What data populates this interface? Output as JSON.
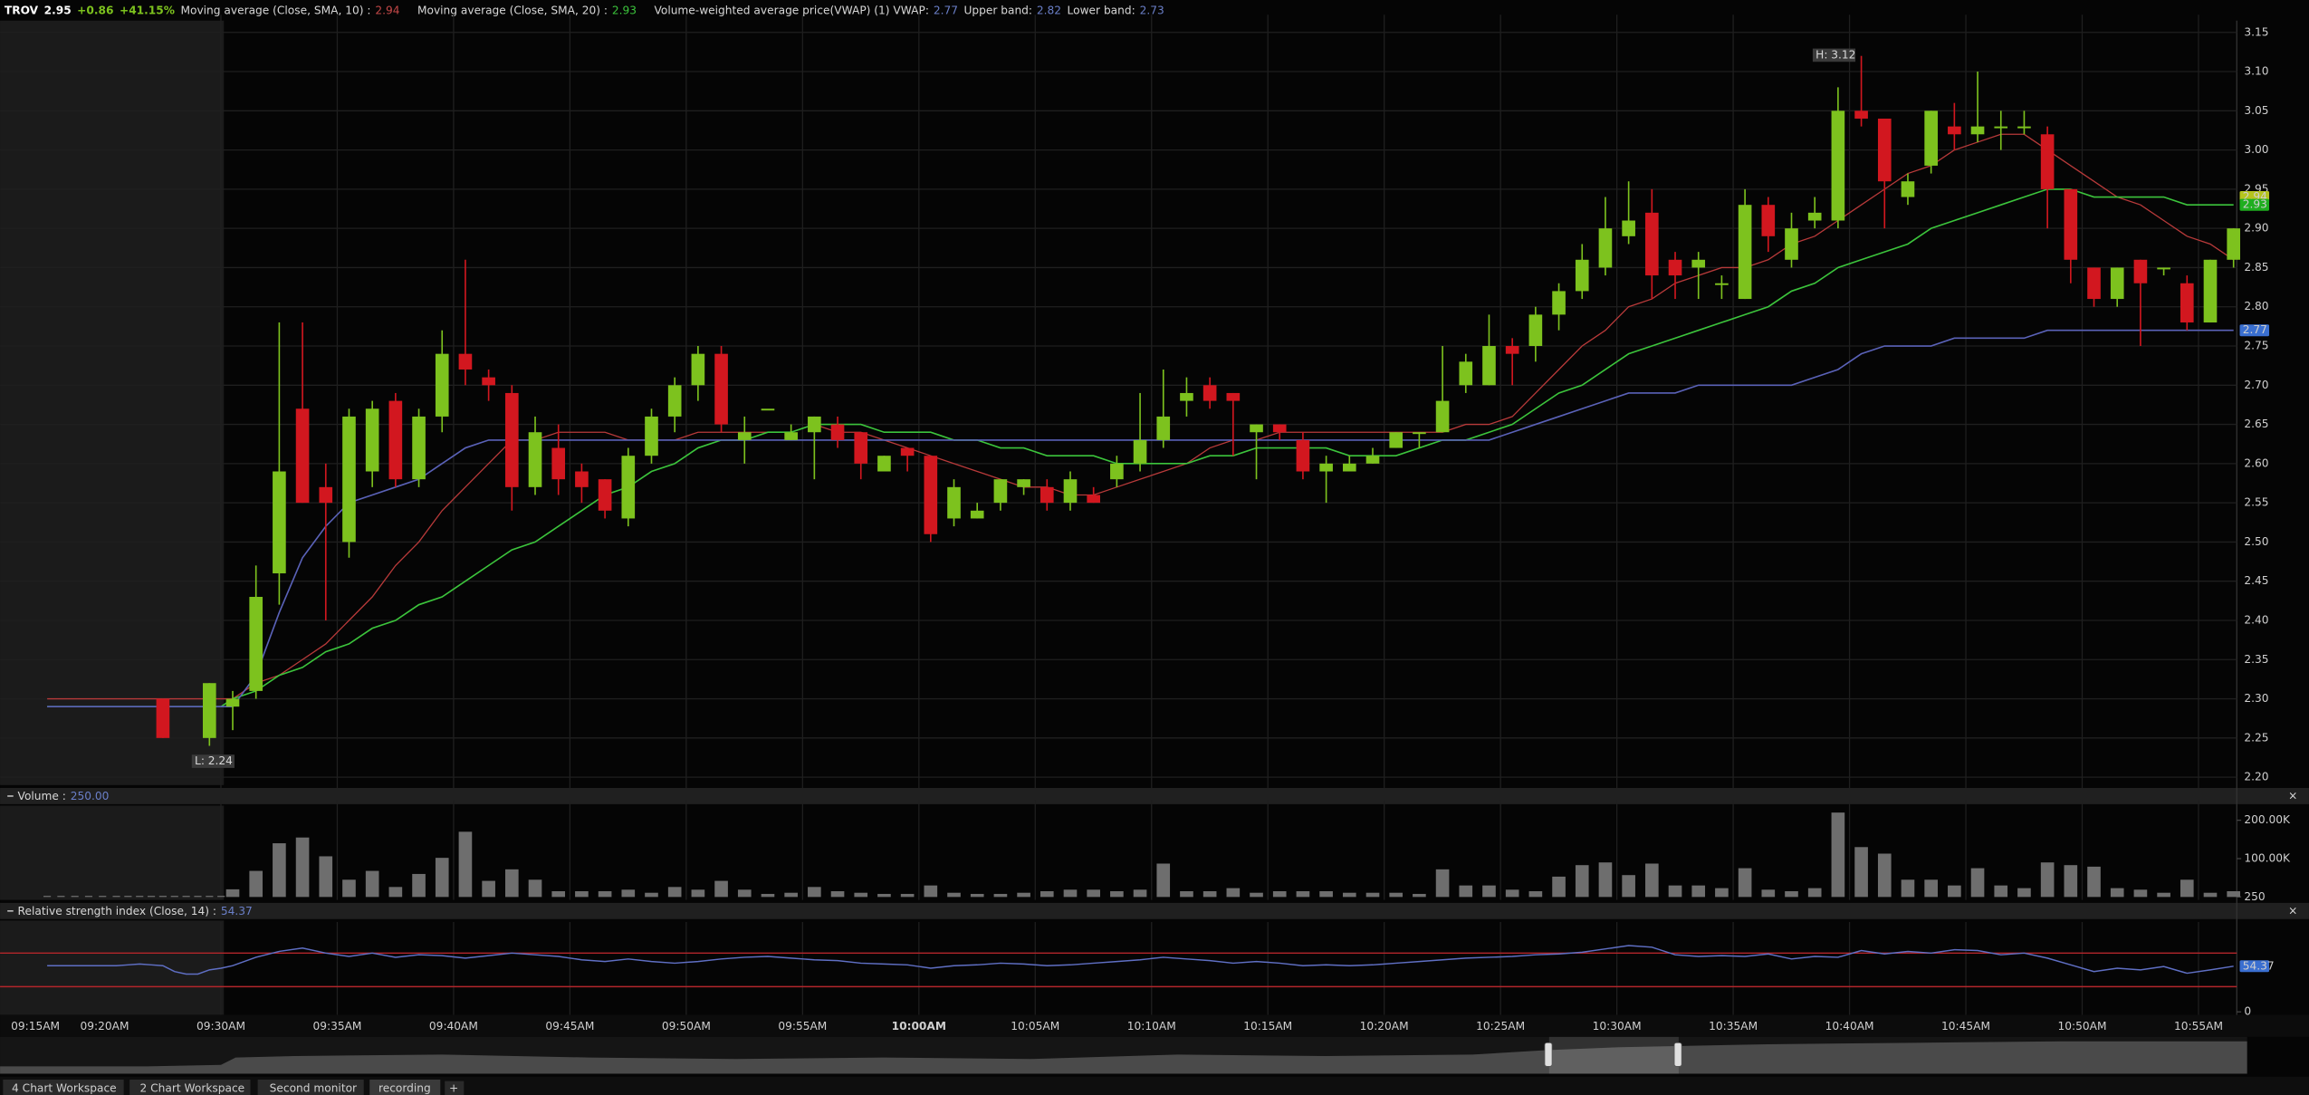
{
  "header": {
    "symbol": "TROV",
    "price": 2.95,
    "change": "+0.86",
    "change_pct": "+41.15%"
  },
  "tabs": [
    "4 Chart Workspace",
    "2 Chart Workspace",
    "Second monitor",
    "recording",
    "+"
  ],
  "chart_data": [
    {
      "type": "candlestick",
      "categories": [
        "09:15AM",
        null,
        null,
        null,
        null,
        "09:20AM",
        null,
        null,
        null,
        null,
        null,
        null,
        null,
        null,
        null,
        "09:30AM",
        null,
        null,
        null,
        null,
        "09:35AM",
        null,
        null,
        null,
        null,
        "09:40AM",
        null,
        null,
        null,
        null,
        "09:45AM",
        null,
        null,
        null,
        null,
        "09:50AM",
        null,
        null,
        null,
        null,
        "09:55AM",
        null,
        null,
        null,
        null,
        "10:00AM",
        null,
        null,
        null,
        null,
        "10:05AM",
        null,
        null,
        null,
        null,
        "10:10AM",
        null,
        null,
        null,
        null,
        "10:15AM",
        null,
        null,
        null,
        null,
        "10:20AM",
        null,
        null,
        null,
        null,
        "10:25AM",
        null,
        null,
        null,
        null,
        "10:30AM",
        null,
        null,
        null,
        null,
        "10:35AM",
        null,
        null,
        null,
        null,
        "10:40AM",
        null,
        null,
        null,
        null,
        "10:45AM",
        null,
        null,
        null,
        null,
        "10:50AM",
        null,
        null,
        null,
        null,
        "10:55AM",
        null
      ],
      "open": [
        null,
        null,
        null,
        null,
        null,
        null,
        null,
        null,
        null,
        2.3,
        null,
        null,
        null,
        2.25,
        null,
        2.29,
        2.31,
        2.46,
        2.67,
        2.57,
        2.5,
        2.59,
        2.68,
        2.58,
        2.66,
        2.74,
        2.71,
        2.69,
        2.57,
        2.62,
        2.59,
        2.58,
        2.53,
        2.61,
        2.66,
        2.7,
        2.74,
        2.63,
        2.67,
        2.63,
        2.64,
        2.65,
        2.64,
        2.59,
        2.62,
        2.61,
        2.53,
        2.53,
        2.55,
        2.57,
        2.57,
        2.55,
        2.56,
        2.58,
        2.6,
        2.63,
        2.68,
        2.7,
        2.69,
        2.64,
        2.65,
        2.63,
        2.59,
        2.59,
        2.6,
        2.62,
        2.64,
        2.64,
        2.7,
        2.7,
        2.75,
        2.75,
        2.79,
        2.82,
        2.85,
        2.89,
        2.92,
        2.86,
        2.85,
        2.83,
        2.81,
        2.93,
        2.86,
        2.91,
        2.91,
        3.05,
        3.04,
        2.94,
        2.98,
        3.03,
        3.02,
        3.03,
        3.03,
        3.02,
        2.95,
        2.85,
        2.81,
        2.86,
        2.85,
        2.83,
        2.78,
        2.86
      ],
      "high": [
        null,
        null,
        null,
        null,
        null,
        null,
        null,
        null,
        null,
        2.3,
        null,
        null,
        null,
        2.32,
        null,
        2.31,
        2.47,
        2.78,
        2.78,
        2.6,
        2.67,
        2.68,
        2.69,
        2.67,
        2.77,
        2.86,
        2.72,
        2.7,
        2.66,
        2.65,
        2.6,
        2.58,
        2.62,
        2.67,
        2.71,
        2.75,
        2.75,
        2.66,
        2.67,
        2.65,
        2.66,
        2.66,
        2.64,
        2.61,
        2.62,
        2.61,
        2.58,
        2.55,
        2.58,
        2.58,
        2.58,
        2.59,
        2.57,
        2.61,
        2.69,
        2.72,
        2.71,
        2.71,
        2.69,
        2.65,
        2.65,
        2.64,
        2.61,
        2.61,
        2.62,
        2.64,
        2.64,
        2.75,
        2.74,
        2.79,
        2.76,
        2.8,
        2.83,
        2.88,
        2.94,
        2.96,
        2.95,
        2.87,
        2.87,
        2.84,
        2.95,
        2.94,
        2.92,
        2.94,
        3.08,
        3.12,
        3.04,
        2.97,
        3.05,
        3.06,
        3.1,
        3.05,
        3.05,
        3.03,
        2.95,
        2.85,
        2.85,
        2.86,
        2.85,
        2.84,
        2.86,
        2.9
      ],
      "low": [
        null,
        null,
        null,
        null,
        null,
        null,
        null,
        null,
        null,
        2.25,
        null,
        null,
        null,
        2.24,
        null,
        2.26,
        2.3,
        2.42,
        2.55,
        2.4,
        2.48,
        2.57,
        2.57,
        2.57,
        2.64,
        2.7,
        2.68,
        2.54,
        2.56,
        2.56,
        2.55,
        2.53,
        2.52,
        2.6,
        2.64,
        2.68,
        2.64,
        2.6,
        2.67,
        2.63,
        2.58,
        2.62,
        2.58,
        2.59,
        2.59,
        2.5,
        2.52,
        2.53,
        2.54,
        2.56,
        2.54,
        2.54,
        2.55,
        2.57,
        2.59,
        2.62,
        2.66,
        2.67,
        2.61,
        2.58,
        2.63,
        2.58,
        2.55,
        2.59,
        2.6,
        2.62,
        2.62,
        2.64,
        2.69,
        2.7,
        2.7,
        2.73,
        2.77,
        2.81,
        2.84,
        2.88,
        2.81,
        2.81,
        2.81,
        2.81,
        2.81,
        2.87,
        2.85,
        2.9,
        2.9,
        3.03,
        2.9,
        2.93,
        2.97,
        3.0,
        3.01,
        3.0,
        3.02,
        2.9,
        2.83,
        2.8,
        2.8,
        2.75,
        2.84,
        2.77,
        2.78,
        2.85
      ],
      "close": [
        null,
        null,
        null,
        null,
        null,
        null,
        null,
        null,
        null,
        2.25,
        null,
        null,
        null,
        2.32,
        null,
        2.3,
        2.43,
        2.59,
        2.55,
        2.55,
        2.66,
        2.67,
        2.58,
        2.66,
        2.74,
        2.72,
        2.7,
        2.57,
        2.64,
        2.58,
        2.57,
        2.54,
        2.61,
        2.66,
        2.7,
        2.74,
        2.65,
        2.64,
        2.67,
        2.64,
        2.66,
        2.63,
        2.6,
        2.61,
        2.61,
        2.51,
        2.57,
        2.54,
        2.58,
        2.58,
        2.55,
        2.58,
        2.55,
        2.6,
        2.63,
        2.66,
        2.69,
        2.68,
        2.68,
        2.65,
        2.64,
        2.59,
        2.6,
        2.6,
        2.61,
        2.64,
        2.64,
        2.68,
        2.73,
        2.75,
        2.74,
        2.79,
        2.82,
        2.86,
        2.9,
        2.91,
        2.84,
        2.84,
        2.86,
        2.83,
        2.93,
        2.89,
        2.9,
        2.92,
        3.05,
        3.04,
        2.96,
        2.96,
        3.05,
        3.02,
        3.03,
        3.03,
        3.03,
        2.95,
        2.86,
        2.81,
        2.85,
        2.83,
        2.85,
        2.78,
        2.86,
        2.9
      ],
      "up_color": "#7dc21e",
      "down_color": "#d2171f",
      "series": [
        {
          "name": "Moving average (Close, SMA, 10) :",
          "color": "#b83a3a",
          "current": 2.94,
          "badge_color": "#b5c41f",
          "values": [
            2.3,
            2.3,
            2.3,
            2.3,
            2.3,
            2.3,
            2.3,
            2.3,
            2.3,
            2.3,
            2.3,
            2.3,
            2.3,
            2.3,
            2.3,
            2.3,
            2.32,
            2.33,
            2.35,
            2.37,
            2.4,
            2.43,
            2.47,
            2.5,
            2.54,
            2.57,
            2.6,
            2.63,
            2.63,
            2.64,
            2.64,
            2.64,
            2.63,
            2.63,
            2.63,
            2.64,
            2.64,
            2.64,
            2.64,
            2.64,
            2.65,
            2.64,
            2.64,
            2.63,
            2.62,
            2.61,
            2.6,
            2.59,
            2.58,
            2.57,
            2.57,
            2.56,
            2.56,
            2.57,
            2.58,
            2.59,
            2.6,
            2.62,
            2.63,
            2.63,
            2.64,
            2.64,
            2.64,
            2.64,
            2.64,
            2.64,
            2.64,
            2.64,
            2.65,
            2.65,
            2.66,
            2.69,
            2.72,
            2.75,
            2.77,
            2.8,
            2.81,
            2.83,
            2.84,
            2.85,
            2.85,
            2.86,
            2.88,
            2.89,
            2.91,
            2.93,
            2.95,
            2.97,
            2.98,
            3.0,
            3.01,
            3.02,
            3.02,
            3.0,
            2.98,
            2.96,
            2.94,
            2.93,
            2.91,
            2.89,
            2.88,
            2.86
          ]
        },
        {
          "name": "Moving average (Close, SMA, 20) :",
          "color": "#3cc43c",
          "current": 2.93,
          "badge_color": "#1fae1f",
          "values": [
            2.29,
            2.29,
            2.29,
            2.29,
            2.29,
            2.29,
            2.29,
            2.29,
            2.29,
            2.29,
            2.29,
            2.29,
            2.29,
            2.29,
            2.29,
            2.3,
            2.31,
            2.33,
            2.34,
            2.36,
            2.37,
            2.39,
            2.4,
            2.42,
            2.43,
            2.45,
            2.47,
            2.49,
            2.5,
            2.52,
            2.54,
            2.56,
            2.57,
            2.59,
            2.6,
            2.62,
            2.63,
            2.63,
            2.64,
            2.64,
            2.65,
            2.65,
            2.65,
            2.64,
            2.64,
            2.64,
            2.63,
            2.63,
            2.62,
            2.62,
            2.61,
            2.61,
            2.61,
            2.6,
            2.6,
            2.6,
            2.6,
            2.61,
            2.61,
            2.62,
            2.62,
            2.62,
            2.62,
            2.61,
            2.61,
            2.61,
            2.62,
            2.63,
            2.63,
            2.64,
            2.65,
            2.67,
            2.69,
            2.7,
            2.72,
            2.74,
            2.75,
            2.76,
            2.77,
            2.78,
            2.79,
            2.8,
            2.82,
            2.83,
            2.85,
            2.86,
            2.87,
            2.88,
            2.9,
            2.91,
            2.92,
            2.93,
            2.94,
            2.95,
            2.95,
            2.94,
            2.94,
            2.94,
            2.94,
            2.93,
            2.93,
            2.93
          ]
        },
        {
          "name": "Volume-weighted average price(VWAP) (1) VWAP:",
          "color": "#5a62b8",
          "current": 2.77,
          "badge_color": "#3a6fd0",
          "bands": [
            {
              "name": "Upper band:",
              "value": 2.82
            },
            {
              "name": "Lower band:",
              "value": 2.73
            }
          ],
          "values": [
            2.29,
            2.29,
            2.29,
            2.29,
            2.29,
            2.29,
            2.29,
            2.29,
            2.29,
            2.29,
            2.29,
            2.29,
            2.29,
            2.29,
            2.29,
            2.29,
            2.33,
            2.41,
            2.48,
            2.52,
            2.55,
            2.56,
            2.57,
            2.58,
            2.6,
            2.62,
            2.63,
            2.63,
            2.63,
            2.63,
            2.63,
            2.63,
            2.63,
            2.63,
            2.63,
            2.63,
            2.63,
            2.63,
            2.63,
            2.63,
            2.63,
            2.63,
            2.63,
            2.63,
            2.63,
            2.63,
            2.63,
            2.63,
            2.63,
            2.63,
            2.63,
            2.63,
            2.63,
            2.63,
            2.63,
            2.63,
            2.63,
            2.63,
            2.63,
            2.63,
            2.63,
            2.63,
            2.63,
            2.63,
            2.63,
            2.63,
            2.63,
            2.63,
            2.63,
            2.63,
            2.64,
            2.65,
            2.66,
            2.67,
            2.68,
            2.69,
            2.69,
            2.69,
            2.7,
            2.7,
            2.7,
            2.7,
            2.7,
            2.71,
            2.72,
            2.74,
            2.75,
            2.75,
            2.75,
            2.76,
            2.76,
            2.76,
            2.76,
            2.77,
            2.77,
            2.77,
            2.77,
            2.77,
            2.77,
            2.77,
            2.77,
            2.77
          ]
        }
      ],
      "annotations": [
        "H: 3.12",
        "L: 2.24"
      ],
      "ylim": [
        2.19,
        3.165
      ],
      "yticks": [
        3.15,
        {
          "value": 3.1,
          "label": "3.10"
        },
        3.05,
        {
          "value": 3.0,
          "label": "3.00"
        },
        2.95,
        {
          "value": 2.9,
          "label": "2.90"
        },
        2.85,
        {
          "value": 2.8,
          "label": "2.80"
        },
        2.75,
        {
          "value": 2.7,
          "label": "2.70"
        },
        2.65,
        {
          "value": 2.6,
          "label": "2.60"
        },
        2.55,
        {
          "value": 2.5,
          "label": "2.50"
        },
        2.45,
        {
          "value": 2.4,
          "label": "2.40"
        },
        2.35,
        {
          "value": 2.3,
          "label": "2.30"
        },
        2.25,
        {
          "value": 2.2,
          "label": "2.20"
        }
      ],
      "grid": true
    },
    {
      "type": "bar",
      "title": "Volume :",
      "current": "250.00",
      "color": "#6e6e6e",
      "values": [
        3000,
        3000,
        3000,
        3000,
        3000,
        3000,
        3000,
        3000,
        3000,
        3000,
        3000,
        3000,
        3000,
        3000,
        3000,
        20000,
        68000,
        140000,
        155000,
        106000,
        45000,
        68000,
        26000,
        60000,
        102000,
        170000,
        42000,
        72000,
        45000,
        15000,
        15000,
        15000,
        19000,
        11000,
        26000,
        19000,
        42000,
        19000,
        8000,
        11000,
        26000,
        15000,
        11000,
        8000,
        8000,
        30000,
        11000,
        8000,
        8000,
        11000,
        15000,
        19000,
        19000,
        15000,
        19000,
        87000,
        15000,
        15000,
        23000,
        11000,
        15000,
        15000,
        15000,
        11000,
        11000,
        11000,
        8000,
        72000,
        30000,
        30000,
        19000,
        15000,
        53000,
        83000,
        90000,
        57000,
        87000,
        30000,
        30000,
        23000,
        75000,
        19000,
        15000,
        23000,
        220000,
        130000,
        113000,
        45000,
        45000,
        30000,
        75000,
        30000,
        23000,
        90000,
        83000,
        79000,
        23000,
        19000,
        11000,
        45000,
        11000,
        15000
      ],
      "ylim": [
        0,
        238000
      ],
      "yticks": [
        250,
        {
          "value": 100000,
          "label": "100.00K"
        },
        {
          "value": 200000,
          "label": "200.00K"
        }
      ]
    },
    {
      "type": "line",
      "title": "Relative strength index (Close, 14) :",
      "current": 54.37,
      "color": "#5f6fc4",
      "badge_color": "#3a6fd0",
      "levels": [
        30,
        70
      ],
      "level_color": "#b3262b",
      "values": [
        55,
        55,
        55,
        55,
        55,
        55,
        56,
        57,
        56,
        55,
        48,
        45,
        45,
        50,
        52,
        55,
        65,
        72,
        76,
        70,
        66,
        70,
        65,
        68,
        67,
        64,
        67,
        70,
        68,
        66,
        62,
        60,
        63,
        60,
        58,
        60,
        63,
        65,
        66,
        64,
        62,
        61,
        58,
        57,
        56,
        52,
        55,
        56,
        58,
        57,
        55,
        56,
        58,
        60,
        62,
        65,
        63,
        61,
        58,
        60,
        58,
        55,
        56,
        55,
        56,
        58,
        60,
        62,
        64,
        65,
        66,
        68,
        69,
        71,
        75,
        79,
        77,
        68,
        66,
        67,
        66,
        69,
        63,
        66,
        65,
        73,
        69,
        72,
        70,
        74,
        73,
        68,
        70,
        64,
        56,
        48,
        52,
        50,
        54,
        46,
        50,
        54.37
      ],
      "ylim": [
        0,
        100
      ],
      "yticks": [
        0
      ]
    }
  ]
}
